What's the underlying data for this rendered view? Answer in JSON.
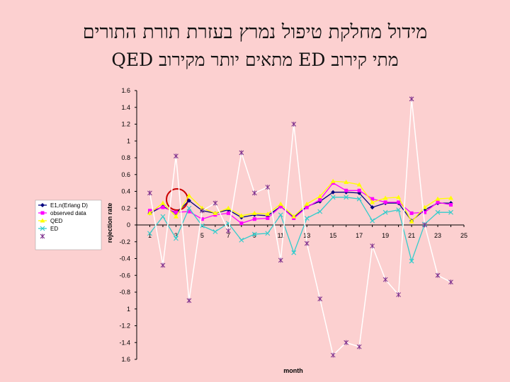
{
  "slide": {
    "title_line1": "מידול מחלקת טיפול נמרץ בעזרת תורת התורים",
    "title_line2": "מתי קירוב ED מתאים יותר מקירוב QED"
  },
  "chart_data": {
    "type": "line",
    "xlabel": "month",
    "ylabel": "rejection rate",
    "xlim": [
      0,
      25
    ],
    "ylim": [
      -1.6,
      1.6
    ],
    "xticks": [
      "1",
      "3",
      "5",
      "7",
      "9",
      "11",
      "13",
      "15",
      "17",
      "19",
      "21",
      "23",
      "25"
    ],
    "yticks": [
      "1.6",
      "1.4",
      "1.2",
      "1",
      "0.8",
      "0.6",
      "0.4",
      "0.2",
      "0",
      "-0.2",
      "-0.4",
      "-0.6",
      "-0.8",
      "1",
      "-1.2",
      "-1.4",
      "1.6"
    ],
    "x": [
      1,
      2,
      3,
      4,
      5,
      6,
      7,
      8,
      9,
      10,
      11,
      12,
      13,
      14,
      15,
      16,
      17,
      18,
      19,
      20,
      21,
      22,
      23,
      24
    ],
    "series": [
      {
        "name": "E1,n(Erlang D)",
        "color": "#000080",
        "marker": "diamond",
        "values": [
          0.14,
          0.22,
          0.14,
          0.29,
          0.17,
          0.14,
          0.18,
          0.09,
          0.12,
          0.11,
          0.22,
          0.09,
          0.22,
          0.28,
          0.39,
          0.39,
          0.38,
          0.21,
          0.26,
          0.26,
          0.05,
          0.18,
          0.26,
          0.26
        ]
      },
      {
        "name": "observed data",
        "color": "#ff00ff",
        "marker": "square",
        "values": [
          0.17,
          0.21,
          0.15,
          0.16,
          0.07,
          0.12,
          0.14,
          0.02,
          0.07,
          0.08,
          0.22,
          0.08,
          0.21,
          0.3,
          0.5,
          0.41,
          0.41,
          0.31,
          0.27,
          0.27,
          0.14,
          0.15,
          0.27,
          0.24
        ]
      },
      {
        "name": "QED",
        "color": "#ffff00",
        "marker": "triangle",
        "values": [
          0.14,
          0.26,
          0.1,
          0.35,
          0.2,
          0.14,
          0.2,
          0.11,
          0.14,
          0.13,
          0.25,
          0.1,
          0.25,
          0.34,
          0.52,
          0.51,
          0.48,
          0.27,
          0.32,
          0.33,
          0.04,
          0.21,
          0.31,
          0.32
        ]
      },
      {
        "name": "ED",
        "color": "#33cccc",
        "marker": "x",
        "values": [
          -0.1,
          0.1,
          -0.16,
          0.2,
          -0.01,
          -0.08,
          0.02,
          -0.18,
          -0.11,
          -0.1,
          0.12,
          -0.33,
          0.08,
          0.16,
          0.33,
          0.33,
          0.31,
          0.05,
          0.15,
          0.18,
          -0.43,
          0.01,
          0.15,
          0.15
        ]
      },
      {
        "name": "",
        "color": "#ffffff",
        "marker": "asterisk",
        "values": [
          0.38,
          -0.48,
          0.82,
          -0.9,
          0.17,
          0.26,
          -0.07,
          0.86,
          0.38,
          0.45,
          -0.42,
          1.2,
          -0.22,
          -0.88,
          -1.55,
          -1.4,
          -1.45,
          -0.25,
          -0.65,
          -0.83,
          1.5,
          0.0,
          -0.6,
          -0.68
        ]
      }
    ]
  }
}
